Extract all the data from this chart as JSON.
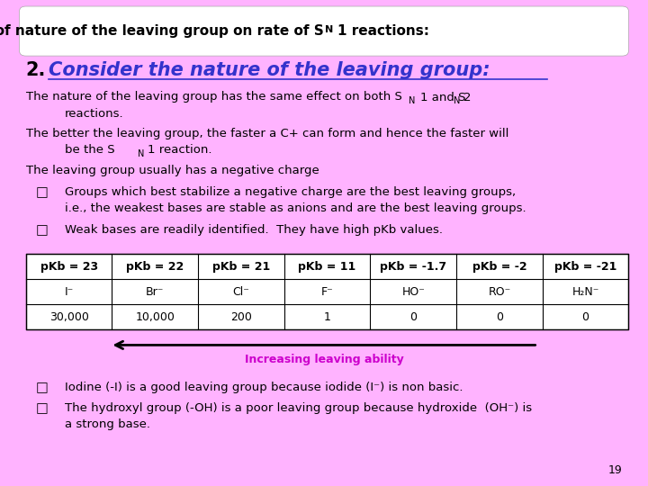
{
  "bg_color": "#ffb3ff",
  "title_box_color": "#ffffff",
  "page_number": "19",
  "text_color": "#000000",
  "heading_color": "#3333cc",
  "arrow_label_color": "#cc00cc",
  "arrow_label": "Increasing leaving ability",
  "title_font_size": 11,
  "heading_font_size": 15,
  "body_font_size": 9.5,
  "table_font_size": 9,
  "table_row1": [
    "pKb = 23",
    "pKb = 22",
    "pKb = 21",
    "pKb = 11",
    "pKb = -1.7",
    "pKb = -2",
    "pKb = -21"
  ],
  "table_row2": [
    "I⁻",
    "Br⁻",
    "Cl⁻",
    "F⁻",
    "HO⁻",
    "RO⁻",
    "H₂N⁻"
  ],
  "table_row3": [
    "30,000",
    "10,000",
    "200",
    "1",
    "0",
    "0",
    "0"
  ]
}
